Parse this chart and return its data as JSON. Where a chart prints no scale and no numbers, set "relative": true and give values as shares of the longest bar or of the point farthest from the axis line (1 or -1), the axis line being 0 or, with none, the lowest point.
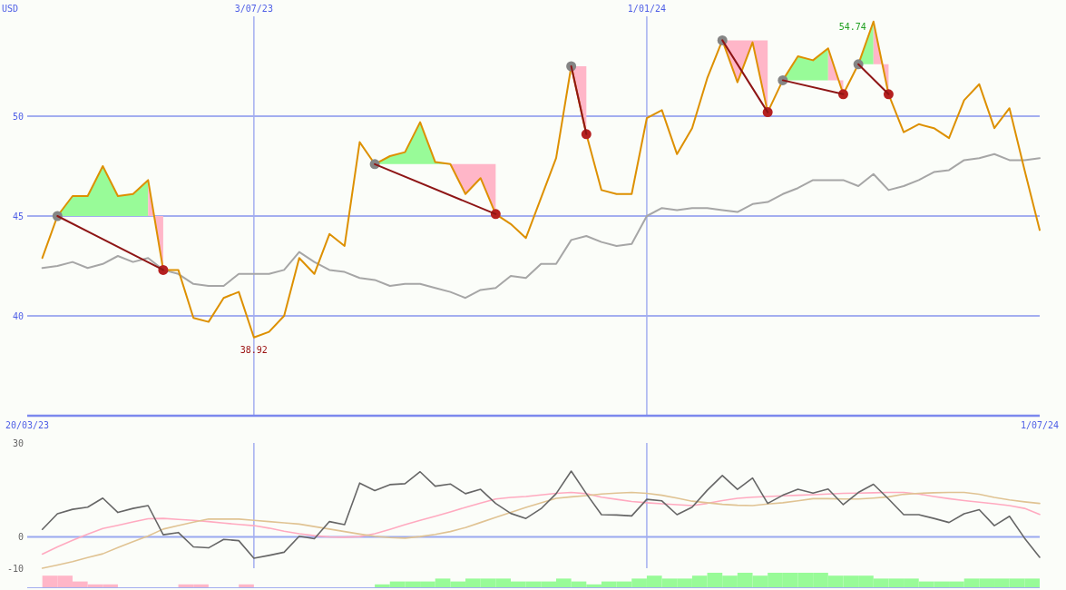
{
  "chart_data": [
    {
      "type": "line",
      "ylabel": "USD",
      "x": [
        "2023-03-27",
        "2023-04-03",
        "2023-04-10",
        "2023-04-17",
        "2023-04-24",
        "2023-05-01",
        "2023-05-08",
        "2023-05-15",
        "2023-05-22",
        "2023-05-29",
        "2023-06-05",
        "2023-06-12",
        "2023-06-19",
        "2023-06-26",
        "2023-07-03",
        "2023-07-10",
        "2023-07-17",
        "2023-07-24",
        "2023-07-31",
        "2023-08-07",
        "2023-08-14",
        "2023-08-21",
        "2023-08-28",
        "2023-09-04",
        "2023-09-11",
        "2023-09-18",
        "2023-09-25",
        "2023-10-02",
        "2023-10-09",
        "2023-10-16",
        "2023-10-23",
        "2023-10-30",
        "2023-11-06",
        "2023-11-13",
        "2023-11-20",
        "2023-11-27",
        "2023-12-04",
        "2023-12-11",
        "2023-12-18",
        "2023-12-25",
        "2024-01-01",
        "2024-01-08",
        "2024-01-15",
        "2024-01-22",
        "2024-01-29",
        "2024-02-05",
        "2024-02-12",
        "2024-02-19",
        "2024-02-26",
        "2024-03-04",
        "2024-03-11",
        "2024-03-18",
        "2024-03-25",
        "2024-04-01",
        "2024-04-08",
        "2024-04-15",
        "2024-04-22",
        "2024-04-29",
        "2024-05-06",
        "2024-05-13",
        "2024-05-20",
        "2024-05-27",
        "2024-06-03",
        "2024-06-10",
        "2024-06-17",
        "2024-06-24",
        "2024-07-01"
      ],
      "xlim": [
        "2023-03-20",
        "2024-07-01"
      ],
      "xticks": [
        {
          "value": "2023-03-20",
          "label": "20/03/23"
        },
        {
          "value": "2024-07-01",
          "label": "1/07/24"
        }
      ],
      "x2lim": [
        "2023-03-20",
        "2024-07-01"
      ],
      "x2ticks": [
        {
          "value": "2023-07-03",
          "label": "3/07/23"
        },
        {
          "value": "2024-01-01",
          "label": "1/01/24"
        }
      ],
      "ylim": [
        35,
        55
      ],
      "yticks": [
        40,
        45,
        50
      ],
      "grid": true,
      "annotations": [
        {
          "text": "54.74",
          "x": "2024-04-15",
          "y": 54.74
        },
        {
          "text": "38.92",
          "x": "2023-07-03",
          "y": 38.92
        }
      ],
      "series": [
        {
          "color": "#98fb98",
          "x": [
            "2023-04-03",
            "2023-04-10",
            "2023-04-17",
            "2023-04-24",
            "2023-05-01",
            "2023-05-08",
            "2023-05-15"
          ],
          "values": [
            null,
            null,
            null,
            null,
            null,
            null,
            null
          ],
          "lower": [
            45.0,
            45.0,
            45.0,
            45.0,
            45.0,
            45.0,
            45.0
          ],
          "upper": [
            45.0,
            46.0,
            46.0,
            47.5,
            46.0,
            46.1,
            46.8
          ]
        },
        {
          "color": "#ffb6c8",
          "x": [
            "2023-05-15",
            "2023-05-22"
          ],
          "values": [
            null,
            null
          ],
          "lower": [
            45.0,
            45.0
          ],
          "upper": [
            46.8,
            42.3
          ]
        },
        {
          "color": "#98fb98",
          "x": [
            "2023-08-28",
            "2023-09-04",
            "2023-09-11",
            "2023-09-18",
            "2023-09-25",
            "2023-10-02"
          ],
          "values": [
            null,
            null,
            null,
            null,
            null,
            null
          ],
          "lower": [
            47.6,
            47.6,
            47.6,
            47.6,
            47.6,
            47.6
          ],
          "upper": [
            47.6,
            48.0,
            48.2,
            49.7,
            47.7,
            47.6
          ]
        },
        {
          "color": "#ffb6c8",
          "x": [
            "2023-10-02",
            "2023-10-09",
            "2023-10-16",
            "2023-10-23"
          ],
          "values": [
            null,
            null,
            null,
            null
          ],
          "lower": [
            47.6,
            47.6,
            47.6,
            47.6
          ],
          "upper": [
            47.6,
            46.1,
            46.9,
            45.1
          ]
        },
        {
          "color": "#ffb6c8",
          "x": [
            "2023-11-27",
            "2023-12-04"
          ],
          "values": [
            null,
            null
          ],
          "lower": [
            52.5,
            52.5
          ],
          "upper": [
            52.5,
            49.1
          ]
        },
        {
          "color": "#ffb6c8",
          "x": [
            "2024-02-05",
            "2024-02-12",
            "2024-02-19",
            "2024-02-26"
          ],
          "values": [
            null,
            null,
            null,
            null
          ],
          "lower": [
            53.8,
            53.8,
            53.8,
            53.8
          ],
          "upper": [
            53.8,
            51.7,
            53.7,
            50.2
          ]
        },
        {
          "color": "#98fb98",
          "x": [
            "2024-03-04",
            "2024-03-11",
            "2024-03-18",
            "2024-03-25"
          ],
          "values": [
            null,
            null,
            null,
            null
          ],
          "lower": [
            51.8,
            51.8,
            51.8,
            51.8
          ],
          "upper": [
            51.8,
            53.0,
            52.8,
            53.4
          ]
        },
        {
          "color": "#ffb6c8",
          "x": [
            "2024-03-25",
            "2024-04-01"
          ],
          "values": [
            null,
            null
          ],
          "lower": [
            51.8,
            51.8
          ],
          "upper": [
            53.4,
            51.1
          ]
        },
        {
          "color": "#98fb98",
          "x": [
            "2024-04-08",
            "2024-04-15"
          ],
          "values": [
            null,
            null
          ],
          "lower": [
            52.6,
            52.6
          ],
          "upper": [
            52.6,
            54.74
          ]
        },
        {
          "color": "#ffb6c8",
          "x": [
            "2024-04-15",
            "2024-04-22"
          ],
          "values": [
            null,
            null
          ],
          "lower": [
            52.6,
            52.6
          ],
          "upper": [
            54.74,
            51.1
          ]
        },
        {
          "color": "#a6a6a6",
          "values": [
            42.4,
            42.5,
            42.7,
            42.4,
            42.6,
            43.0,
            42.7,
            42.9,
            42.3,
            42.1,
            41.6,
            41.5,
            41.5,
            42.1,
            42.1,
            42.1,
            42.3,
            43.2,
            42.7,
            42.3,
            42.2,
            41.9,
            41.8,
            41.5,
            41.6,
            41.6,
            41.4,
            41.2,
            40.9,
            41.3,
            41.4,
            42.0,
            41.9,
            42.6,
            42.6,
            43.8,
            44.0,
            43.7,
            43.5,
            43.6,
            45.0,
            45.4,
            45.3,
            45.4,
            45.4,
            45.3,
            45.2,
            45.6,
            45.7,
            46.1,
            46.4,
            46.8,
            46.8,
            46.8,
            46.5,
            47.1,
            46.3,
            46.5,
            46.8,
            47.2,
            47.3,
            47.8,
            47.9,
            48.1,
            47.8,
            47.8,
            47.9
          ]
        },
        {
          "color": "#dd9000",
          "values": [
            42.9,
            45.0,
            46.0,
            46.0,
            47.5,
            46.0,
            46.1,
            46.8,
            42.3,
            42.3,
            39.9,
            39.7,
            40.9,
            41.2,
            38.92,
            39.2,
            40.0,
            42.9,
            42.1,
            44.1,
            43.5,
            48.7,
            47.6,
            48.0,
            48.2,
            49.7,
            47.7,
            47.6,
            46.1,
            46.9,
            45.1,
            44.6,
            43.9,
            45.9,
            47.9,
            52.5,
            49.1,
            46.3,
            46.1,
            46.1,
            49.9,
            50.3,
            48.1,
            49.4,
            51.9,
            53.8,
            51.7,
            53.7,
            50.2,
            51.8,
            53.0,
            52.8,
            53.4,
            51.1,
            52.6,
            54.74,
            51.1,
            49.2,
            49.6,
            49.4,
            48.9,
            50.8,
            51.6,
            49.4,
            50.4,
            47.3,
            44.3
          ]
        },
        {
          "type": "scatter",
          "color": "#858585",
          "marker": "circle",
          "x": [
            "2023-04-03",
            "2023-08-28",
            "2023-11-27",
            "2024-02-05",
            "2024-03-04",
            "2024-04-08"
          ],
          "values": [
            45.0,
            47.6,
            52.5,
            53.8,
            51.8,
            52.6
          ]
        },
        {
          "type": "scatter",
          "color": "#b52020",
          "marker": "circle",
          "x": [
            "2023-05-22",
            "2023-10-23",
            "2023-12-04",
            "2024-02-26",
            "2024-04-01",
            "2024-04-22"
          ],
          "values": [
            42.3,
            45.1,
            49.1,
            50.2,
            51.1,
            51.1
          ]
        },
        {
          "color": "#8e1515",
          "x": [
            "2023-04-03",
            "2023-05-22",
            "2023-05-29",
            "2023-08-28",
            "2023-10-23",
            "2023-10-30",
            "2023-11-27",
            "2023-12-04",
            "2023-12-11",
            "2024-02-05",
            "2024-02-26",
            "2024-02-29",
            "2024-03-04",
            "2024-04-01",
            "2024-04-04",
            "2024-04-08",
            "2024-04-22"
          ],
          "values": [
            45.0,
            42.3,
            null,
            47.6,
            45.1,
            null,
            52.5,
            49.1,
            null,
            53.8,
            50.2,
            null,
            51.8,
            51.1,
            null,
            52.6,
            51.1
          ]
        }
      ]
    },
    {
      "type": "line",
      "x": [
        "2023-03-27",
        "2023-04-03",
        "2023-04-10",
        "2023-04-17",
        "2023-04-24",
        "2023-05-01",
        "2023-05-08",
        "2023-05-15",
        "2023-05-22",
        "2023-05-29",
        "2023-06-05",
        "2023-06-12",
        "2023-06-19",
        "2023-06-26",
        "2023-07-03",
        "2023-07-10",
        "2023-07-17",
        "2023-07-24",
        "2023-07-31",
        "2023-08-07",
        "2023-08-14",
        "2023-08-21",
        "2023-08-28",
        "2023-09-04",
        "2023-09-11",
        "2023-09-18",
        "2023-09-25",
        "2023-10-02",
        "2023-10-09",
        "2023-10-16",
        "2023-10-23",
        "2023-10-30",
        "2023-11-06",
        "2023-11-13",
        "2023-11-20",
        "2023-11-27",
        "2023-12-04",
        "2023-12-11",
        "2023-12-18",
        "2023-12-25",
        "2024-01-01",
        "2024-01-08",
        "2024-01-15",
        "2024-01-22",
        "2024-01-29",
        "2024-02-05",
        "2024-02-12",
        "2024-02-19",
        "2024-02-26",
        "2024-03-04",
        "2024-03-11",
        "2024-03-18",
        "2024-03-25",
        "2024-04-01",
        "2024-04-08",
        "2024-04-15",
        "2024-04-22",
        "2024-04-29",
        "2024-05-06",
        "2024-05-13",
        "2024-05-20",
        "2024-05-27",
        "2024-06-03",
        "2024-06-10",
        "2024-06-17",
        "2024-06-24",
        "2024-07-01"
      ],
      "xlim": [
        "2023-03-20",
        "2024-07-01"
      ],
      "ylim": [
        -10,
        30
      ],
      "yticks": [
        -10,
        0,
        30
      ],
      "ref_lines": [
        {
          "axis": "y",
          "value": 0,
          "color": "#9aa8f0"
        },
        {
          "axis": "x",
          "value": "2023-07-03",
          "color": "#a3aef0"
        },
        {
          "axis": "x",
          "value": "2024-01-01",
          "color": "#a3aef0"
        }
      ],
      "series": [
        {
          "color": "#ffaac0",
          "values": [
            -5.5,
            -3.2,
            -1.1,
            0.9,
            2.7,
            3.7,
            4.8,
            5.8,
            5.9,
            5.6,
            5.3,
            4.9,
            4.4,
            4.0,
            3.6,
            2.8,
            1.8,
            1.0,
            0.4,
            0.0,
            -0.1,
            0.1,
            1.0,
            2.4,
            3.9,
            5.3,
            6.6,
            8.0,
            9.4,
            10.8,
            12.1,
            12.6,
            12.9,
            13.4,
            13.9,
            14.2,
            13.8,
            12.7,
            12.0,
            11.3,
            10.9,
            10.6,
            10.3,
            10.0,
            10.7,
            11.6,
            12.3,
            12.7,
            12.9,
            13.1,
            13.3,
            13.5,
            13.7,
            13.9,
            14.0,
            14.1,
            14.2,
            14.2,
            13.7,
            12.9,
            12.2,
            11.6,
            11.1,
            10.6,
            10.0,
            9.1,
            7.2
          ]
        },
        {
          "color": "#e0c393",
          "values": [
            -10.0,
            -9.0,
            -7.9,
            -6.6,
            -5.4,
            -3.4,
            -1.5,
            0.3,
            2.5,
            3.6,
            4.7,
            5.7,
            5.7,
            5.7,
            5.3,
            4.9,
            4.5,
            4.1,
            3.3,
            2.5,
            1.7,
            0.9,
            0.2,
            -0.2,
            -0.4,
            0.1,
            0.8,
            1.7,
            3.0,
            4.6,
            6.2,
            7.8,
            9.4,
            10.9,
            12.3,
            12.8,
            13.2,
            13.7,
            14.0,
            14.2,
            13.9,
            13.3,
            12.4,
            11.4,
            10.9,
            10.4,
            10.1,
            10.0,
            10.5,
            10.9,
            11.5,
            12.2,
            12.2,
            12.1,
            12.1,
            12.4,
            12.8,
            13.6,
            13.9,
            14.1,
            14.2,
            14.2,
            13.6,
            12.6,
            11.8,
            11.2,
            10.7
          ]
        },
        {
          "color": "#666666",
          "values": [
            2.4,
            7.4,
            8.8,
            9.5,
            12.4,
            7.8,
            9.1,
            10.0,
            0.7,
            1.4,
            -3.2,
            -3.5,
            -0.8,
            -1.2,
            -6.8,
            -5.9,
            -4.9,
            0.2,
            -0.6,
            4.9,
            3.9,
            17.2,
            14.8,
            16.7,
            17.0,
            20.8,
            16.2,
            16.9,
            13.8,
            15.2,
            10.7,
            7.5,
            5.9,
            9.0,
            13.8,
            21.0,
            13.8,
            7.1,
            7.0,
            6.7,
            12.0,
            11.5,
            7.1,
            9.5,
            14.9,
            19.6,
            15.2,
            18.8,
            10.7,
            13.3,
            15.2,
            14.0,
            15.3,
            10.3,
            14.2,
            16.8,
            12.1,
            7.1,
            7.1,
            5.9,
            4.6,
            7.4,
            8.7,
            3.6,
            6.6,
            -0.4,
            -6.5
          ]
        }
      ]
    },
    {
      "type": "bar",
      "relative": true,
      "x": [
        "2023-03-30T12:00",
        "2023-04-06T12:00",
        "2023-04-13T12:00",
        "2023-04-20T12:00",
        "2023-04-27T12:00",
        "2023-05-04T12:00",
        "2023-05-11T12:00",
        "2023-05-18T12:00",
        "2023-05-25T12:00",
        "2023-06-01T12:00",
        "2023-06-08T12:00",
        "2023-06-15T12:00",
        "2023-06-22T12:00",
        "2023-06-29T12:00",
        "2023-07-06T12:00",
        "2023-07-13T12:00",
        "2023-07-20T12:00",
        "2023-07-27T12:00",
        "2023-08-03T12:00",
        "2023-08-10T12:00",
        "2023-08-17T12:00",
        "2023-08-24T12:00",
        "2023-08-31T12:00",
        "2023-09-07T12:00",
        "2023-09-14T12:00",
        "2023-09-21T12:00",
        "2023-09-28T12:00",
        "2023-10-05T12:00",
        "2023-10-12T12:00",
        "2023-10-19T12:00",
        "2023-10-26T12:00",
        "2023-11-02T12:00",
        "2023-11-09T12:00",
        "2023-11-16T12:00",
        "2023-11-23T12:00",
        "2023-11-30T12:00",
        "2023-12-07T12:00",
        "2023-12-14T12:00",
        "2023-12-21T12:00",
        "2023-12-28T12:00",
        "2024-01-04T12:00",
        "2024-01-11T12:00",
        "2024-01-18T12:00",
        "2024-01-25T12:00",
        "2024-02-01T12:00",
        "2024-02-08T12:00",
        "2024-02-15T12:00",
        "2024-02-22T12:00",
        "2024-02-29T12:00",
        "2024-03-07T12:00",
        "2024-03-14T12:00",
        "2024-03-21T12:00",
        "2024-03-28T12:00",
        "2024-04-04T12:00",
        "2024-04-11T12:00",
        "2024-04-18T12:00",
        "2024-04-25T12:00",
        "2024-05-02T12:00",
        "2024-05-09T12:00",
        "2024-05-16T12:00",
        "2024-05-23T12:00",
        "2024-05-30T12:00",
        "2024-06-06T12:00",
        "2024-06-13T12:00",
        "2024-06-20T12:00",
        "2024-06-27T12:00"
      ],
      "xlim": [
        "2023-03-20",
        "2024-07-01"
      ],
      "values": [
        0.8,
        0.8,
        0.4,
        0.2,
        0.2,
        null,
        null,
        null,
        null,
        0.2,
        0.2,
        null,
        null,
        0.2,
        null,
        null,
        null,
        null,
        null,
        null,
        null,
        null,
        0.2,
        0.4,
        0.4,
        0.4,
        0.6,
        0.4,
        0.6,
        0.6,
        0.6,
        0.4,
        0.4,
        0.4,
        0.6,
        0.4,
        0.2,
        0.4,
        0.4,
        0.6,
        0.8,
        0.6,
        0.6,
        0.8,
        1.0,
        0.8,
        1.0,
        0.8,
        1.0,
        1.0,
        1.0,
        1.0,
        0.8,
        0.8,
        0.8,
        0.6,
        0.6,
        0.6,
        0.4,
        0.4,
        0.4,
        0.6,
        0.6,
        0.6,
        0.6,
        0.6
      ],
      "colors": [
        "#ffb6c8",
        "#ffb6c8",
        "#ffb6c8",
        "#ffb6c8",
        "#ffb6c8",
        null,
        null,
        null,
        null,
        "#ffb6c8",
        "#ffb6c8",
        null,
        null,
        "#ffb6c8",
        null,
        null,
        null,
        null,
        null,
        null,
        null,
        null,
        "#98fb98",
        "#98fb98",
        "#98fb98",
        "#98fb98",
        "#98fb98",
        "#98fb98",
        "#98fb98",
        "#98fb98",
        "#98fb98",
        "#98fb98",
        "#98fb98",
        "#98fb98",
        "#98fb98",
        "#98fb98",
        "#98fb98",
        "#98fb98",
        "#98fb98",
        "#98fb98",
        "#98fb98",
        "#98fb98",
        "#98fb98",
        "#98fb98",
        "#98fb98",
        "#98fb98",
        "#98fb98",
        "#98fb98",
        "#98fb98",
        "#98fb98",
        "#98fb98",
        "#98fb98",
        "#98fb98",
        "#98fb98",
        "#98fb98",
        "#98fb98",
        "#98fb98",
        "#98fb98",
        "#98fb98",
        "#98fb98",
        "#98fb98",
        "#98fb98",
        "#98fb98",
        "#98fb98",
        "#98fb98",
        "#98fb98"
      ]
    }
  ]
}
